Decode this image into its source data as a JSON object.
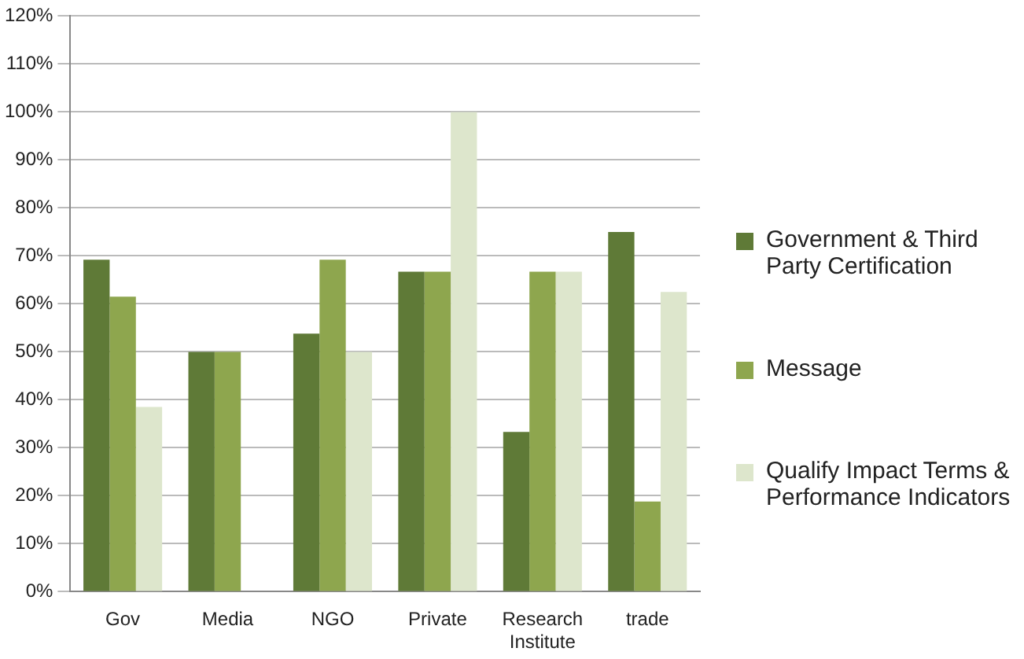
{
  "chart_data": {
    "type": "bar",
    "categories": [
      "Gov",
      "Media",
      "NGO",
      "Private",
      "Research Institute",
      "trade"
    ],
    "series": [
      {
        "name": "Government & Third Party Certification",
        "color": "#5f7a37",
        "values": [
          69.2,
          50,
          53.8,
          66.7,
          33.3,
          75
        ]
      },
      {
        "name": "Message",
        "color": "#8ea64e",
        "values": [
          61.5,
          50,
          69.2,
          66.7,
          66.7,
          18.8
        ]
      },
      {
        "name": "Qualify Impact Terms & Performance Indicators",
        "color": "#dde6cc",
        "values": [
          38.5,
          0,
          50,
          100,
          66.7,
          62.5
        ]
      }
    ],
    "ylim": [
      0,
      120
    ],
    "yticks": [
      {
        "value": 0,
        "label": "0%"
      },
      {
        "value": 10,
        "label": "10%"
      },
      {
        "value": 20,
        "label": "20%"
      },
      {
        "value": 30,
        "label": "30%"
      },
      {
        "value": 40,
        "label": "40%"
      },
      {
        "value": 50,
        "label": "50%"
      },
      {
        "value": 60,
        "label": "60%"
      },
      {
        "value": 70,
        "label": "70%"
      },
      {
        "value": 80,
        "label": "80%"
      },
      {
        "value": 90,
        "label": "90%"
      },
      {
        "value": 100,
        "label": "100%"
      },
      {
        "value": 110,
        "label": "110%"
      },
      {
        "value": 120,
        "label": "120%"
      }
    ],
    "grid": "y",
    "legend": "right"
  }
}
